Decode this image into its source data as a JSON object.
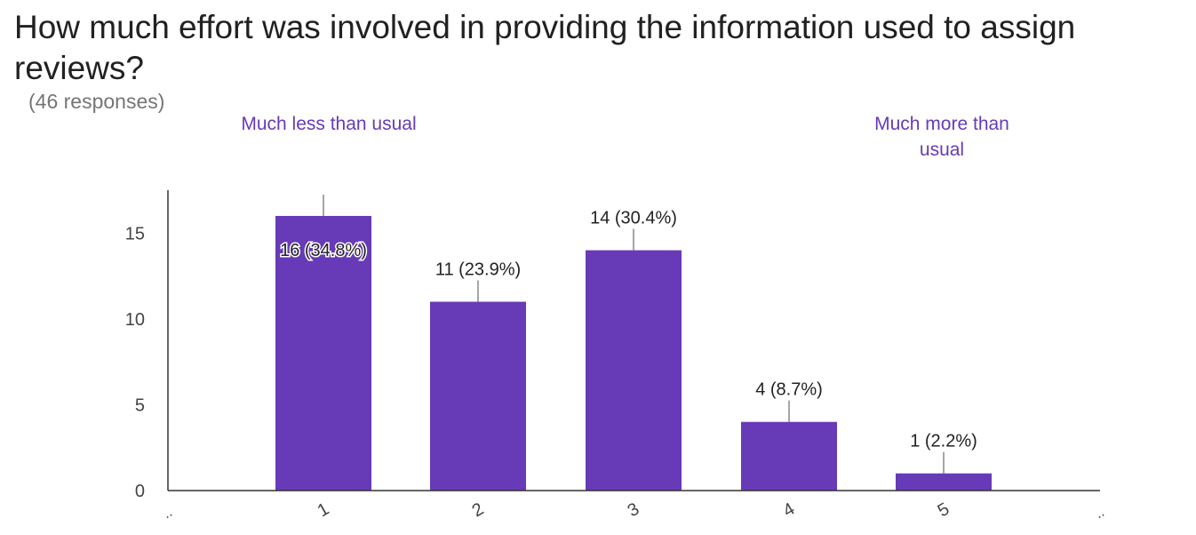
{
  "question": {
    "title": "How much effort was involved in providing the information used to assign reviews?",
    "responses": "(46 responses)"
  },
  "scale": {
    "low_label": "Much less than usual",
    "high_label": "Much more than usual"
  },
  "colors": {
    "bar": "#673ab7",
    "scale_label": "#673ab7",
    "axis": "#333333",
    "tick_text": "#444444"
  },
  "chart_data": {
    "type": "bar",
    "categories": [
      "1",
      "2",
      "3",
      "4",
      "5"
    ],
    "edge_labels": [
      "..",
      ".."
    ],
    "values": [
      16,
      11,
      14,
      4,
      1
    ],
    "data_labels": [
      "16 (34.8%)",
      "11 (23.9%)",
      "14 (30.4%)",
      "4 (8.7%)",
      "1 (2.2%)"
    ],
    "yticks": [
      "0",
      "5",
      "10",
      "15"
    ],
    "ytick_values": [
      0,
      5,
      10,
      15
    ],
    "ylim": [
      0,
      17.5
    ],
    "title": "How much effort was involved in providing the information used to assign reviews?",
    "xlabel": "",
    "ylabel": "",
    "grid": false,
    "legend": "none"
  }
}
